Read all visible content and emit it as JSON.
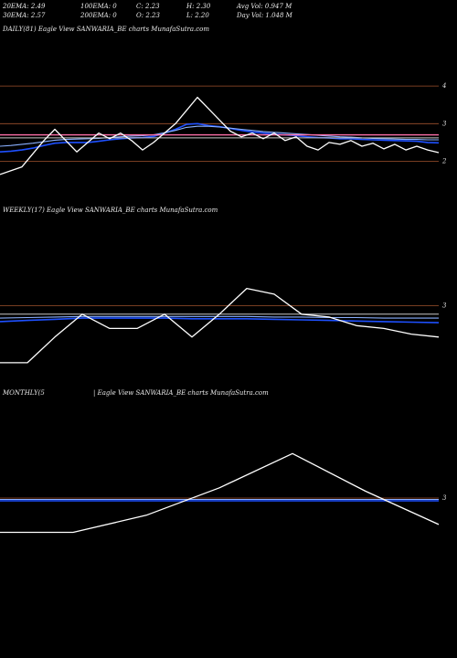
{
  "header": {
    "row1": {
      "ema20": "20EMA: 2.49",
      "ema100": "100EMA: 0",
      "close": "C: 2.23",
      "high": "H: 2.30",
      "avgvol": "Avg Vol: 0.947  M"
    },
    "row2": {
      "ema30": "30EMA: 2.57",
      "ema200": "200EMA: 0",
      "open": "O: 2.23",
      "low": "L: 2.20",
      "dayvol": "Day Vol: 1.048  M"
    }
  },
  "panels": {
    "daily": {
      "label": "DAILY(81) Eagle   View  SANWARIA_BE charts MunafaSutra.com"
    },
    "weekly": {
      "label": "WEEKLY(17) Eagle   View  SANWARIA_BE charts MunafaSutra.com"
    },
    "monthly": {
      "label_left": "MONTHLY(5",
      "label_right": "| Eagle   View  SANWARIA_BE charts MunafaSutra.com"
    }
  },
  "colors": {
    "price": "#ffffff",
    "ema_blue": "#1e50ff",
    "ema_light": "#8ab0ff",
    "pink": "#ff6fa8",
    "gray": "#c8c8c8",
    "level": "#a0522d"
  },
  "chart_data": [
    {
      "type": "line",
      "panel": "daily",
      "y_ticks": [
        4,
        3,
        2
      ],
      "ylim": [
        1.55,
        4.1
      ],
      "levels": [
        4,
        3,
        2
      ],
      "series": [
        {
          "role": "price",
          "values": [
            1.65,
            1.75,
            1.85,
            2.2,
            2.55,
            2.85,
            2.55,
            2.25,
            2.5,
            2.75,
            2.6,
            2.75,
            2.55,
            2.3,
            2.5,
            2.75,
            3.0,
            3.35,
            3.7,
            3.4,
            3.1,
            2.8,
            2.65,
            2.75,
            2.6,
            2.75,
            2.55,
            2.65,
            2.4,
            2.3,
            2.5,
            2.45,
            2.55,
            2.4,
            2.48,
            2.33,
            2.45,
            2.3,
            2.4,
            2.3,
            2.23
          ]
        },
        {
          "role": "ema_blue",
          "values": [
            2.25,
            2.27,
            2.3,
            2.35,
            2.42,
            2.48,
            2.5,
            2.5,
            2.5,
            2.53,
            2.57,
            2.6,
            2.62,
            2.63,
            2.66,
            2.75,
            2.85,
            2.98,
            3.0,
            2.95,
            2.92,
            2.87,
            2.82,
            2.78,
            2.75,
            2.72,
            2.7,
            2.68,
            2.65,
            2.63,
            2.62,
            2.6,
            2.6,
            2.58,
            2.57,
            2.56,
            2.55,
            2.54,
            2.53,
            2.5,
            2.49
          ]
        },
        {
          "role": "ema_light",
          "values": [
            2.4,
            2.42,
            2.45,
            2.48,
            2.52,
            2.56,
            2.58,
            2.59,
            2.6,
            2.61,
            2.63,
            2.65,
            2.67,
            2.68,
            2.7,
            2.76,
            2.82,
            2.9,
            2.93,
            2.93,
            2.91,
            2.88,
            2.85,
            2.82,
            2.79,
            2.77,
            2.75,
            2.73,
            2.71,
            2.69,
            2.67,
            2.65,
            2.64,
            2.62,
            2.61,
            2.6,
            2.59,
            2.58,
            2.58,
            2.57,
            2.57
          ]
        },
        {
          "role": "pink",
          "values": [
            2.7,
            2.7,
            2.7,
            2.7,
            2.7,
            2.7,
            2.7,
            2.7,
            2.7,
            2.7,
            2.7,
            2.7,
            2.7,
            2.7,
            2.7,
            2.7,
            2.7,
            2.7,
            2.7,
            2.7,
            2.7,
            2.7,
            2.7,
            2.7,
            2.7,
            2.7,
            2.7,
            2.7,
            2.7,
            2.7,
            2.7,
            2.7,
            2.7,
            2.7,
            2.7,
            2.7,
            2.7,
            2.7,
            2.7,
            2.7,
            2.7
          ]
        },
        {
          "role": "gray",
          "values": [
            2.62,
            2.62,
            2.62,
            2.62,
            2.62,
            2.62,
            2.62,
            2.62,
            2.62,
            2.62,
            2.62,
            2.62,
            2.62,
            2.62,
            2.62,
            2.62,
            2.62,
            2.62,
            2.62,
            2.62,
            2.62,
            2.62,
            2.62,
            2.62,
            2.62,
            2.62,
            2.62,
            2.62,
            2.62,
            2.62,
            2.62,
            2.62,
            2.62,
            2.62,
            2.62,
            2.62,
            2.62,
            2.62,
            2.62,
            2.62,
            2.62
          ]
        }
      ]
    },
    {
      "type": "line",
      "panel": "weekly",
      "y_ticks": [
        3
      ],
      "ylim": [
        1.95,
        3.55
      ],
      "levels": [
        3
      ],
      "series": [
        {
          "role": "price",
          "values": [
            2.0,
            2.0,
            2.45,
            2.85,
            2.6,
            2.6,
            2.85,
            2.45,
            2.85,
            3.3,
            3.2,
            2.85,
            2.8,
            2.65,
            2.6,
            2.5,
            2.45
          ]
        },
        {
          "role": "ema_blue",
          "values": [
            2.72,
            2.74,
            2.76,
            2.78,
            2.78,
            2.78,
            2.78,
            2.77,
            2.77,
            2.77,
            2.76,
            2.75,
            2.74,
            2.73,
            2.72,
            2.71,
            2.7
          ]
        },
        {
          "role": "ema_light",
          "values": [
            2.78,
            2.79,
            2.8,
            2.81,
            2.81,
            2.81,
            2.81,
            2.81,
            2.81,
            2.81,
            2.8,
            2.8,
            2.79,
            2.79,
            2.78,
            2.78,
            2.78
          ]
        },
        {
          "role": "gray",
          "values": [
            2.85,
            2.85,
            2.85,
            2.85,
            2.85,
            2.85,
            2.85,
            2.85,
            2.85,
            2.85,
            2.85,
            2.85,
            2.85,
            2.85,
            2.85,
            2.85,
            2.85
          ]
        }
      ]
    },
    {
      "type": "line",
      "panel": "monthly",
      "y_ticks": [
        3
      ],
      "ylim": [
        1.4,
        4.6
      ],
      "levels": [
        3
      ],
      "series": [
        {
          "role": "price",
          "values": [
            2.0,
            2.0,
            2.5,
            3.3,
            4.3,
            3.2,
            2.23
          ]
        },
        {
          "role": "ema_blue",
          "values": [
            2.92,
            2.92,
            2.92,
            2.92,
            2.92,
            2.92,
            2.92
          ]
        },
        {
          "role": "ema_light",
          "values": [
            2.96,
            2.96,
            2.96,
            2.96,
            2.96,
            2.96,
            2.96
          ]
        }
      ]
    }
  ]
}
